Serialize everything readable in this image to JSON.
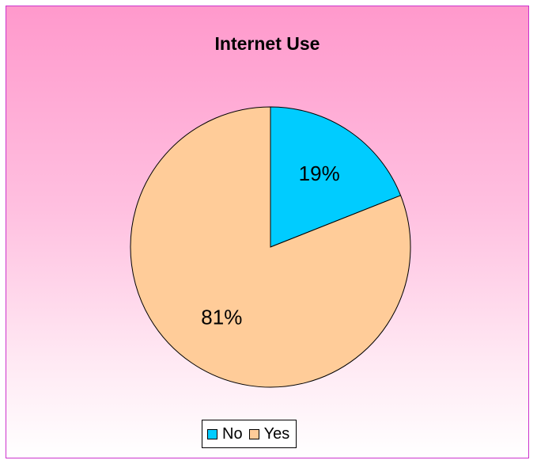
{
  "chart_data": {
    "type": "pie",
    "title": "Internet Use",
    "categories": [
      "No",
      "Yes"
    ],
    "values": [
      19,
      81
    ],
    "data_labels": [
      "19%",
      "81%"
    ],
    "colors": [
      "#00ccff",
      "#ffcc99"
    ],
    "legend_position": "bottom"
  },
  "legend": {
    "items": [
      {
        "label": "No",
        "color": "#00ccff"
      },
      {
        "label": "Yes",
        "color": "#ffcc99"
      }
    ]
  }
}
